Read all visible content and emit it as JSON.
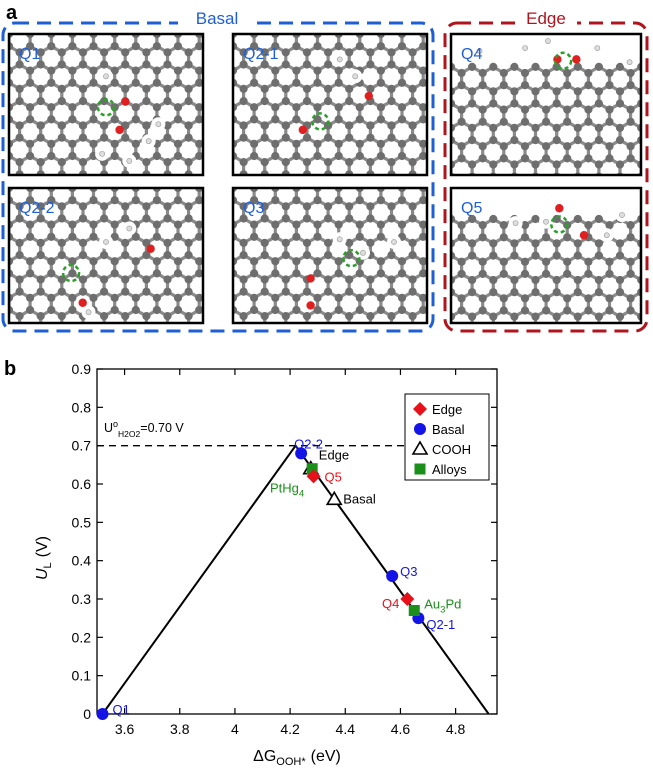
{
  "panel_a": {
    "label": "a",
    "basal_title": "Basal",
    "edge_title": "Edge",
    "basal_color": "#1f5fd6",
    "edge_color": "#b0141c",
    "atom_color": "#6e6e6e",
    "oxygen_color": "#e02020",
    "marker_color": "#2aa22a",
    "panels": [
      "Q1",
      "Q2-1",
      "Q2-2",
      "Q3",
      "Q4",
      "Q5"
    ]
  },
  "chart_data": {
    "type": "scatter",
    "panel_label": "b",
    "xlabel_prefix": "ΔG",
    "xlabel_sub": "OOH*",
    "xlabel_suffix": "(eV)",
    "ylabel_main": "U",
    "ylabel_sub": "L",
    "ylabel_suffix": "(V)",
    "xlim": [
      3.5,
      4.95
    ],
    "ylim": [
      0,
      0.9
    ],
    "xticks": [
      "3.6",
      "3.8",
      "4",
      "4.2",
      "4.4",
      "4.6",
      "4.8"
    ],
    "xtick_values": [
      3.6,
      3.8,
      4.0,
      4.2,
      4.4,
      4.6,
      4.8
    ],
    "yticks": [
      "0",
      "0.1",
      "0.2",
      "0.3",
      "0.4",
      "0.5",
      "0.6",
      "0.7",
      "0.8",
      "0.9"
    ],
    "ytick_values": [
      0,
      0.1,
      0.2,
      0.3,
      0.4,
      0.5,
      0.6,
      0.7,
      0.8,
      0.9
    ],
    "volcano_line": [
      [
        3.52,
        0.0
      ],
      [
        4.22,
        0.7
      ],
      [
        4.92,
        0.0
      ]
    ],
    "reference": {
      "y": 0.7,
      "text_main": "U",
      "text_sup": "o",
      "text_sub": "H2O2",
      "text_value": "=0.70 V"
    },
    "legend": {
      "position": "top-right",
      "entries": [
        "Edge",
        "Basal",
        "COOH",
        "Alloys"
      ]
    },
    "series": [
      {
        "name": "Edge",
        "marker": "diamond",
        "color": "#e8111a",
        "points": [
          {
            "x": 4.285,
            "y": 0.62,
            "label": "Q5"
          },
          {
            "x": 4.625,
            "y": 0.3,
            "label": "Q4"
          }
        ]
      },
      {
        "name": "Basal",
        "marker": "circle",
        "color": "#1414e6",
        "points": [
          {
            "x": 3.52,
            "y": 0.0,
            "label": "Q1"
          },
          {
            "x": 4.24,
            "y": 0.68,
            "label": "Q2-2"
          },
          {
            "x": 4.57,
            "y": 0.36,
            "label": "Q3"
          },
          {
            "x": 4.665,
            "y": 0.25,
            "label": "Q2-1"
          }
        ]
      },
      {
        "name": "COOH",
        "marker": "triangle",
        "color": "#000000",
        "points": [
          {
            "x": 4.275,
            "y": 0.64,
            "label": "Edge"
          },
          {
            "x": 4.36,
            "y": 0.56,
            "label": "Basal"
          }
        ]
      },
      {
        "name": "Alloys",
        "marker": "square",
        "color": "#1a8f1a",
        "points": [
          {
            "x": 4.28,
            "y": 0.64,
            "label": "PtHg4"
          },
          {
            "x": 4.65,
            "y": 0.27,
            "label": "Au3Pd"
          }
        ]
      }
    ]
  }
}
